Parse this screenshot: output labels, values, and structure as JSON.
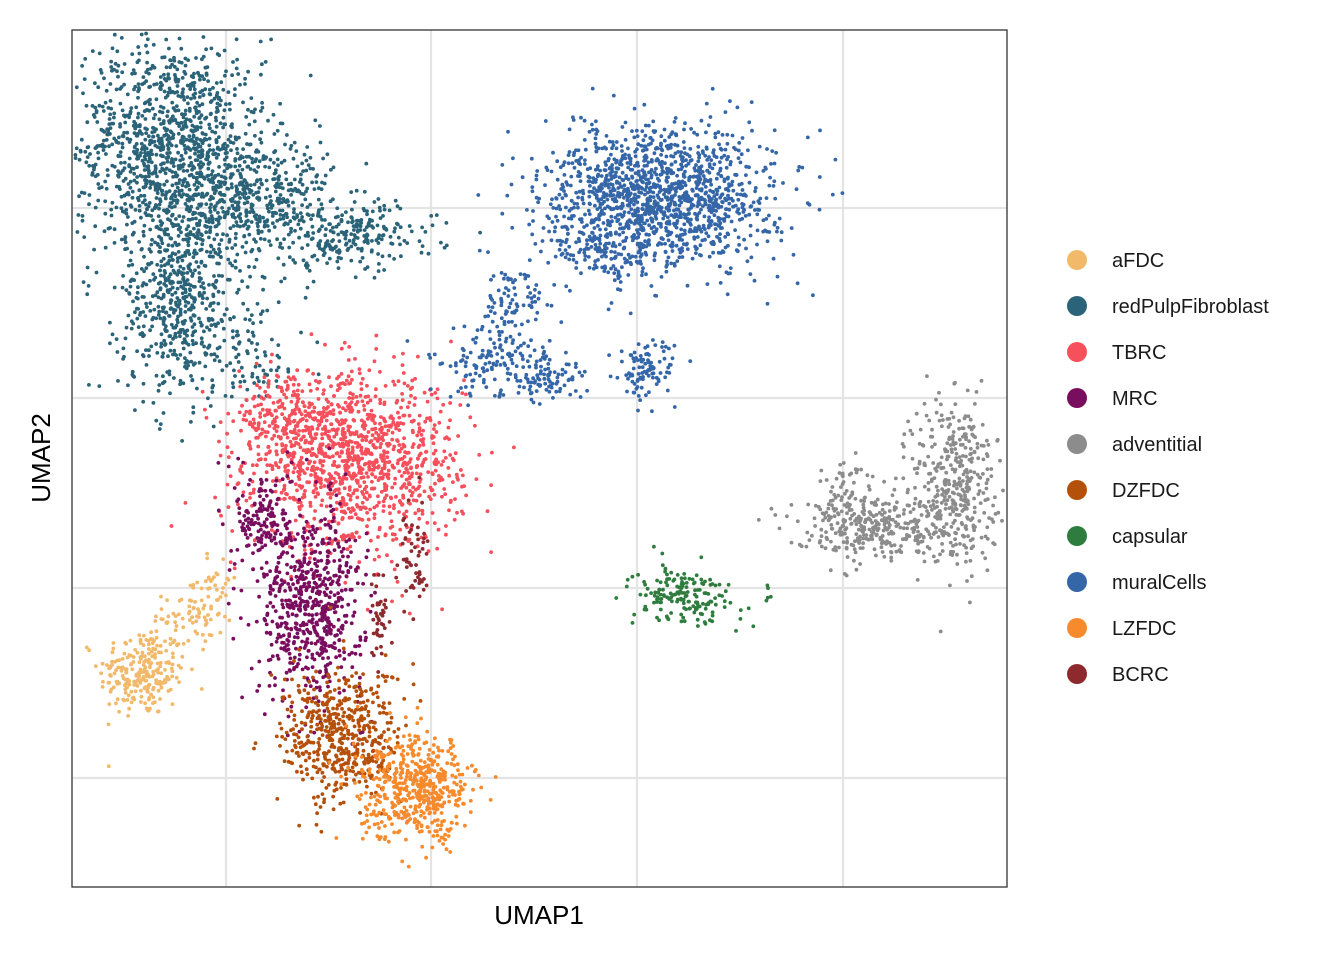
{
  "chart_data": {
    "type": "scatter",
    "title": "",
    "xlabel": "UMAP1",
    "ylabel": "UMAP2",
    "xlim": [
      0,
      100
    ],
    "ylim": [
      0,
      100
    ],
    "grid": true,
    "legend_position": "right",
    "series": [
      {
        "name": "aFDC",
        "color": "#F2B96B",
        "clusters": [
          {
            "cx": 7.5,
            "cy": 25.0,
            "sx": 2.3,
            "sy": 2.6,
            "n": 240
          },
          {
            "cx": 13.0,
            "cy": 31.5,
            "sx": 1.6,
            "sy": 2.0,
            "n": 70
          },
          {
            "cx": 15.5,
            "cy": 36.0,
            "sx": 1.2,
            "sy": 1.6,
            "n": 25
          }
        ]
      },
      {
        "name": "redPulpFibroblast",
        "color": "#2B6378",
        "clusters": [
          {
            "cx": 10.5,
            "cy": 86.0,
            "sx": 5.0,
            "sy": 6.5,
            "n": 1200
          },
          {
            "cx": 20.0,
            "cy": 80.0,
            "sx": 4.0,
            "sy": 3.8,
            "n": 420
          },
          {
            "cx": 11.5,
            "cy": 68.0,
            "sx": 3.2,
            "sy": 5.5,
            "n": 520
          },
          {
            "cx": 30.0,
            "cy": 76.0,
            "sx": 4.5,
            "sy": 2.0,
            "n": 220
          },
          {
            "cx": 20.0,
            "cy": 62.0,
            "sx": 2.6,
            "sy": 3.0,
            "n": 70
          }
        ]
      },
      {
        "name": "TBRC",
        "color": "#F5505B",
        "clusters": [
          {
            "cx": 30.5,
            "cy": 49.5,
            "sx": 5.5,
            "sy": 5.0,
            "n": 1150
          },
          {
            "cx": 23.0,
            "cy": 54.0,
            "sx": 2.8,
            "sy": 3.0,
            "n": 220
          }
        ]
      },
      {
        "name": "MRC",
        "color": "#7A0E5E",
        "clusters": [
          {
            "cx": 25.5,
            "cy": 33.0,
            "sx": 2.8,
            "sy": 5.5,
            "n": 620
          },
          {
            "cx": 20.5,
            "cy": 43.0,
            "sx": 1.5,
            "sy": 3.0,
            "n": 150
          }
        ]
      },
      {
        "name": "adventitial",
        "color": "#8C8C8C",
        "clusters": [
          {
            "cx": 94.5,
            "cy": 47.5,
            "sx": 2.3,
            "sy": 5.0,
            "n": 380
          },
          {
            "cx": 86.0,
            "cy": 42.0,
            "sx": 4.5,
            "sy": 1.8,
            "n": 330
          },
          {
            "cx": 82.5,
            "cy": 46.0,
            "sx": 1.5,
            "sy": 2.3,
            "n": 60
          }
        ]
      },
      {
        "name": "DZFDC",
        "color": "#B5500A",
        "clusters": [
          {
            "cx": 29.0,
            "cy": 17.5,
            "sx": 3.2,
            "sy": 4.0,
            "n": 520
          }
        ]
      },
      {
        "name": "capsular",
        "color": "#2E7D3E",
        "clusters": [
          {
            "cx": 65.5,
            "cy": 34.0,
            "sx": 2.8,
            "sy": 1.7,
            "n": 170
          }
        ]
      },
      {
        "name": "muralCells",
        "color": "#3466A8",
        "clusters": [
          {
            "cx": 63.0,
            "cy": 80.5,
            "sx": 6.0,
            "sy": 4.0,
            "n": 1400
          },
          {
            "cx": 56.5,
            "cy": 74.0,
            "sx": 3.5,
            "sy": 1.8,
            "n": 100
          },
          {
            "cx": 47.0,
            "cy": 68.0,
            "sx": 1.6,
            "sy": 2.5,
            "n": 90
          },
          {
            "cx": 44.0,
            "cy": 61.0,
            "sx": 3.0,
            "sy": 2.0,
            "n": 120
          },
          {
            "cx": 51.0,
            "cy": 59.5,
            "sx": 2.0,
            "sy": 1.5,
            "n": 90
          },
          {
            "cx": 61.5,
            "cy": 60.0,
            "sx": 1.5,
            "sy": 1.8,
            "n": 100
          }
        ]
      },
      {
        "name": "LZFDC",
        "color": "#F78A2C",
        "clusters": [
          {
            "cx": 37.0,
            "cy": 11.5,
            "sx": 3.0,
            "sy": 3.0,
            "n": 520
          }
        ]
      },
      {
        "name": "BCRC",
        "color": "#8E2A2E",
        "clusters": [
          {
            "cx": 36.5,
            "cy": 38.0,
            "sx": 0.8,
            "sy": 3.0,
            "n": 55
          },
          {
            "cx": 33.0,
            "cy": 31.0,
            "sx": 0.5,
            "sy": 3.0,
            "n": 40
          }
        ]
      }
    ]
  }
}
